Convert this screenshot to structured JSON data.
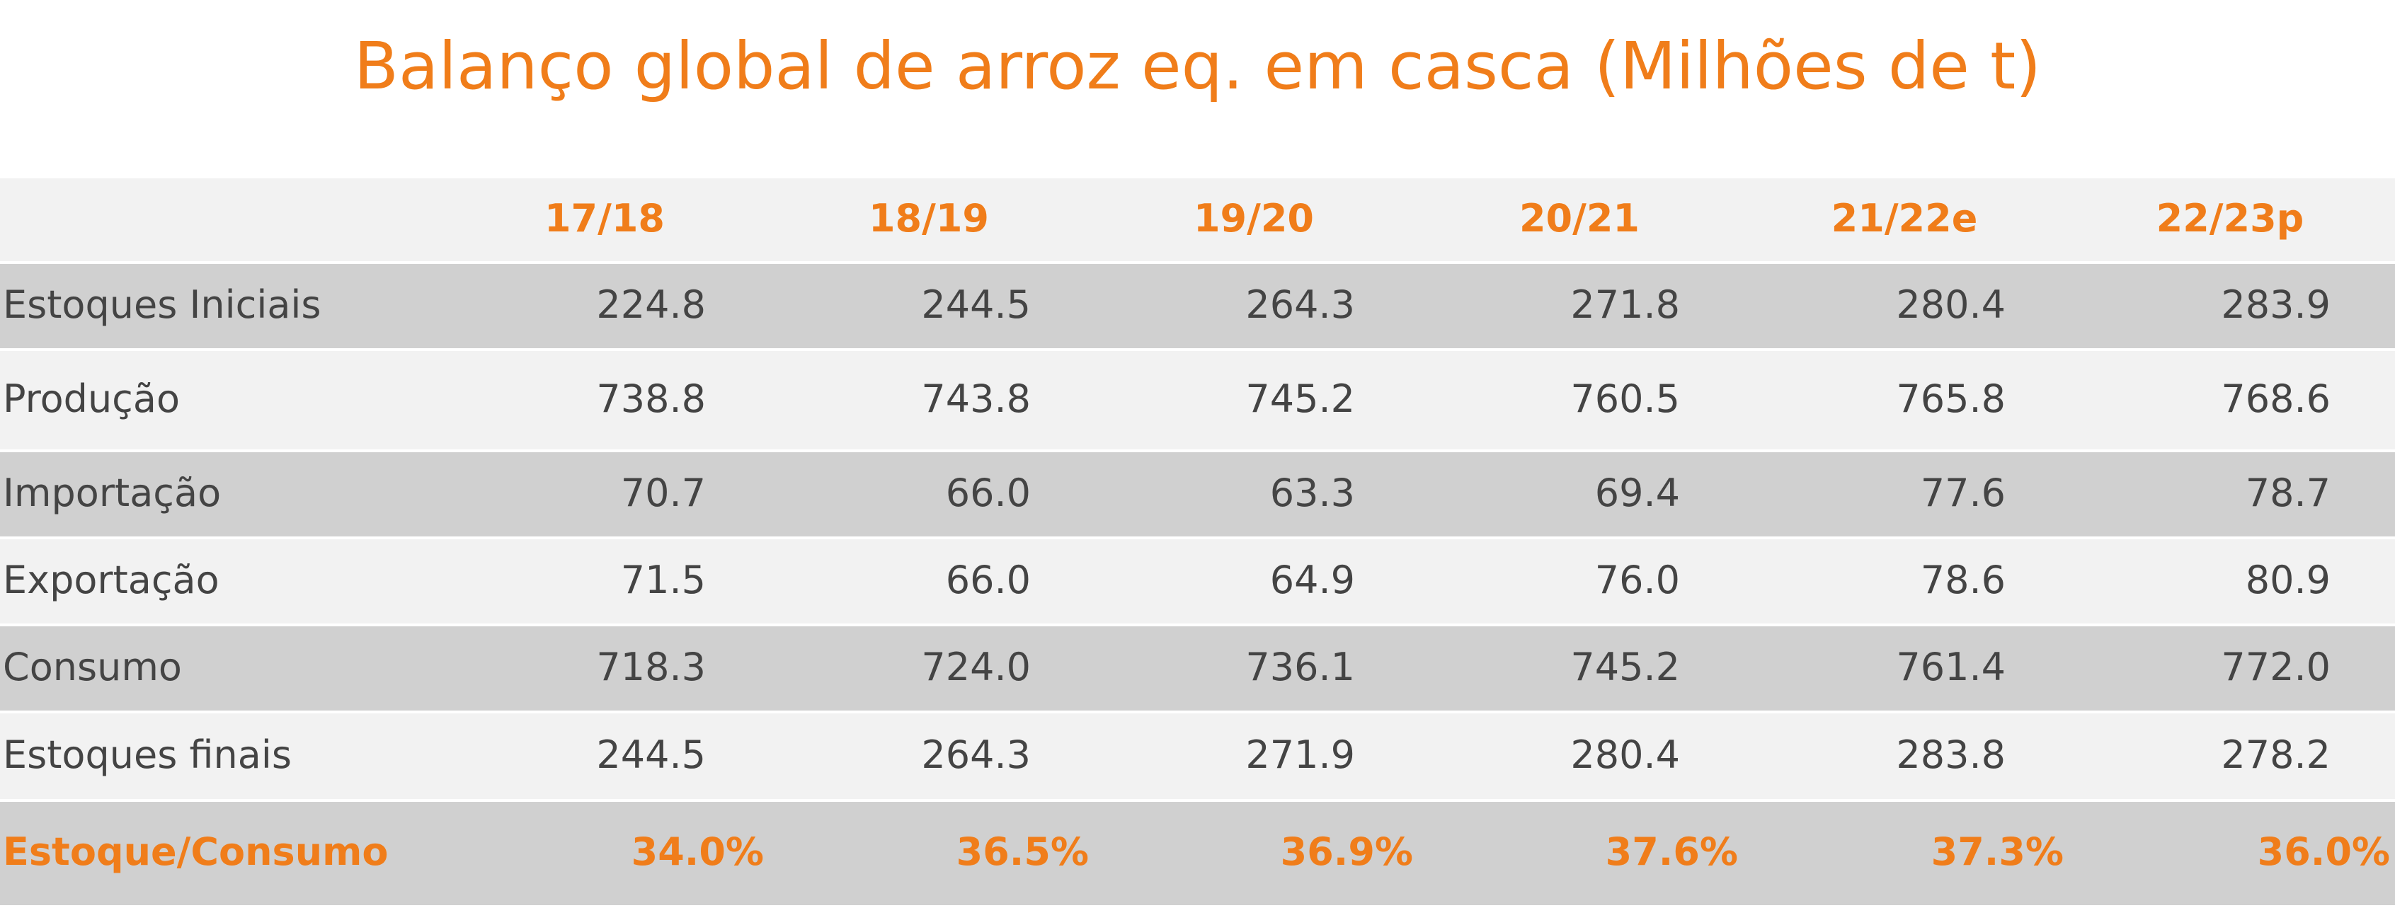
{
  "title": "Balanço global de arroz eq. em casca (Milhões de t)",
  "table": {
    "columns": [
      "17/18",
      "18/19",
      "19/20",
      "20/21",
      "21/22e",
      "22/23p"
    ],
    "rows": [
      [
        "Estoques Iniciais",
        "224.8",
        "244.5",
        "264.3",
        "271.8",
        "280.4",
        "283.9"
      ],
      [
        "Produção",
        "738.8",
        "743.8",
        "745.2",
        "760.5",
        "765.8",
        "768.6"
      ],
      [
        "Importação",
        "70.7",
        "66.0",
        "63.3",
        "69.4",
        "77.6",
        "78.7"
      ],
      [
        "Exportação",
        "71.5",
        "66.0",
        "64.9",
        "76.0",
        "78.6",
        "80.9"
      ],
      [
        "Consumo",
        "718.3",
        "724.0",
        "736.1",
        "745.2",
        "761.4",
        "772.0"
      ],
      [
        "Estoques finais",
        "244.5",
        "264.3",
        "271.9",
        "280.4",
        "283.8",
        "278.2"
      ]
    ],
    "summary": [
      "Estoque/Consumo",
      "34.0%",
      "36.5%",
      "36.9%",
      "37.6%",
      "37.3%",
      "36.0%"
    ]
  }
}
